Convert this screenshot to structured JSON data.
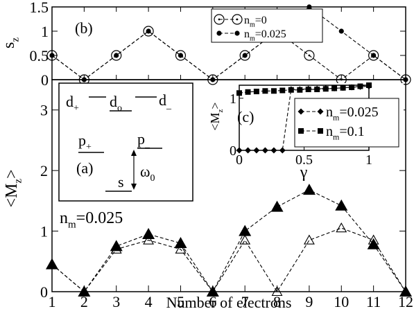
{
  "chart_data": [
    {
      "id": "b",
      "type": "line",
      "panel_label": "(b)",
      "title": "",
      "xlabel": "",
      "ylabel": "s",
      "ylabel_sub": "z",
      "ylim": [
        0,
        1.5
      ],
      "xlim": [
        1,
        12
      ],
      "yticks": [
        "0",
        "0.5",
        "1",
        "1.5"
      ],
      "x": [
        1,
        2,
        3,
        4,
        5,
        6,
        7,
        8,
        9,
        10,
        11,
        12
      ],
      "legend_position": "top-right",
      "series": [
        {
          "name": "n",
          "name_sub": "m",
          "name_suffix": "=0",
          "marker": "open-circle-dot",
          "values": [
            0.5,
            0,
            0.5,
            1,
            0.5,
            0,
            0.5,
            1,
            0.5,
            0,
            0.5,
            0
          ]
        },
        {
          "name": "n",
          "name_sub": "m",
          "name_suffix": "=0.025",
          "marker": "filled-circle",
          "values": [
            0.5,
            0,
            0.5,
            1,
            0.5,
            0,
            0.5,
            1,
            1.5,
            1,
            0.5,
            0
          ]
        }
      ]
    },
    {
      "id": "main",
      "type": "line",
      "title": "",
      "xlabel": "Number of electrons",
      "ylabel": "<M",
      "ylabel_sub": "z",
      "ylabel_suffix": ">",
      "ylim": [
        0,
        3.5
      ],
      "xlim": [
        1,
        12
      ],
      "yticks": [
        "0",
        "1",
        "2",
        "3"
      ],
      "xticks": [
        "1",
        "2",
        "3",
        "4",
        "5",
        "6",
        "7",
        "8",
        "9",
        "10",
        "11",
        "12"
      ],
      "annotation": {
        "base": "n",
        "sub": "m",
        "suffix": "=0.025"
      },
      "x": [
        1,
        2,
        3,
        4,
        5,
        6,
        7,
        8,
        9,
        10,
        11,
        12
      ],
      "series": [
        {
          "marker": "filled-triangle",
          "values": [
            0.45,
            0,
            0.75,
            0.95,
            0.8,
            0,
            1.0,
            1.4,
            1.68,
            1.42,
            0.78,
            0
          ]
        },
        {
          "marker": "open-triangle",
          "values": [
            0.45,
            0,
            0.7,
            0.85,
            0.7,
            0,
            0.85,
            0,
            0.85,
            1.05,
            0.85,
            0
          ]
        }
      ]
    },
    {
      "id": "c",
      "type": "line",
      "panel_label": "(c)",
      "title": "",
      "xlabel": "γ",
      "ylabel": "<M",
      "ylabel_sub": "z",
      "ylabel_suffix": ">",
      "xlim": [
        0,
        1
      ],
      "ylim": [
        0,
        1.25
      ],
      "xticks": [
        "0",
        "0.5",
        "1"
      ],
      "yticks": [
        "0",
        "1"
      ],
      "legend_position": "bottom-right",
      "series": [
        {
          "name": "n",
          "name_sub": "m",
          "name_suffix": "=0.025",
          "marker": "filled-diamond",
          "x": [
            0,
            0.067,
            0.133,
            0.2,
            0.267,
            0.333,
            0.4,
            0.467,
            0.533,
            0.6,
            0.667,
            0.733,
            0.8,
            0.867,
            0.933,
            1.0
          ],
          "values": [
            0,
            0,
            0,
            0,
            0,
            0,
            1.17,
            1.17,
            1.18,
            1.18,
            1.19,
            1.19,
            1.2,
            1.21,
            1.22,
            1.23
          ]
        },
        {
          "name": "n",
          "name_sub": "m",
          "name_suffix": "=0.1",
          "marker": "filled-square",
          "x": [
            0,
            0.067,
            0.133,
            0.2,
            0.267,
            0.333,
            0.4,
            0.467,
            0.533,
            0.6,
            0.667,
            0.733,
            0.8,
            0.867,
            0.933,
            1.0
          ],
          "values": [
            1.1,
            1.12,
            1.13,
            1.14,
            1.14,
            1.15,
            1.16,
            1.16,
            1.17,
            1.17,
            1.18,
            1.19,
            1.2,
            1.21,
            1.23,
            1.25
          ]
        }
      ]
    }
  ],
  "inset_a": {
    "panel_label": "(a)",
    "levels": [
      {
        "base": "d",
        "sub": "+"
      },
      {
        "base": "d",
        "sub": "o"
      },
      {
        "base": "d",
        "sub": "_"
      },
      {
        "base": "p",
        "sub": "+"
      },
      {
        "base": "p",
        "sub": "_"
      },
      {
        "base": "s",
        "sub": ""
      }
    ],
    "omega": {
      "base": "ω",
      "sub": "0"
    }
  }
}
